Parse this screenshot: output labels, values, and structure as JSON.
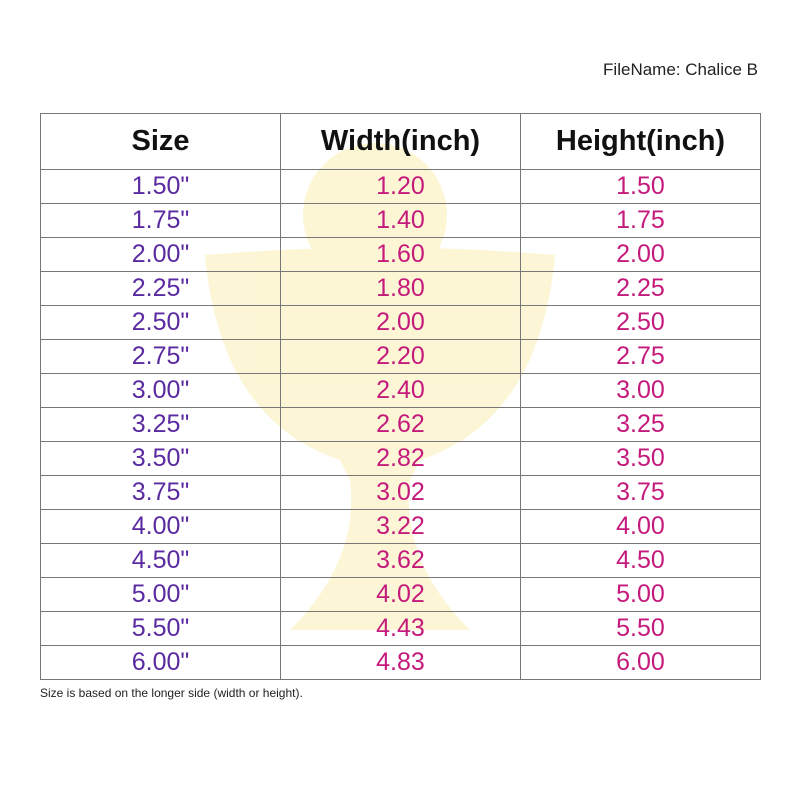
{
  "file_name": "FileName: Chalice B",
  "table": {
    "headers": [
      "Size",
      "Width(inch)",
      "Height(inch)"
    ],
    "rows": [
      [
        "1.50\"",
        "1.20",
        "1.50"
      ],
      [
        "1.75\"",
        "1.40",
        "1.75"
      ],
      [
        "2.00\"",
        "1.60",
        "2.00"
      ],
      [
        "2.25\"",
        "1.80",
        "2.25"
      ],
      [
        "2.50\"",
        "2.00",
        "2.50"
      ],
      [
        "2.75\"",
        "2.20",
        "2.75"
      ],
      [
        "3.00\"",
        "2.40",
        "3.00"
      ],
      [
        "3.25\"",
        "2.62",
        "3.25"
      ],
      [
        "3.50\"",
        "2.82",
        "3.50"
      ],
      [
        "3.75\"",
        "3.02",
        "3.75"
      ],
      [
        "4.00\"",
        "3.22",
        "4.00"
      ],
      [
        "4.50\"",
        "3.62",
        "4.50"
      ],
      [
        "5.00\"",
        "4.02",
        "5.00"
      ],
      [
        "5.50\"",
        "4.43",
        "5.50"
      ],
      [
        "6.00\"",
        "4.83",
        "6.00"
      ]
    ]
  },
  "footnote": "Size is based on the longer side (width or height)."
}
